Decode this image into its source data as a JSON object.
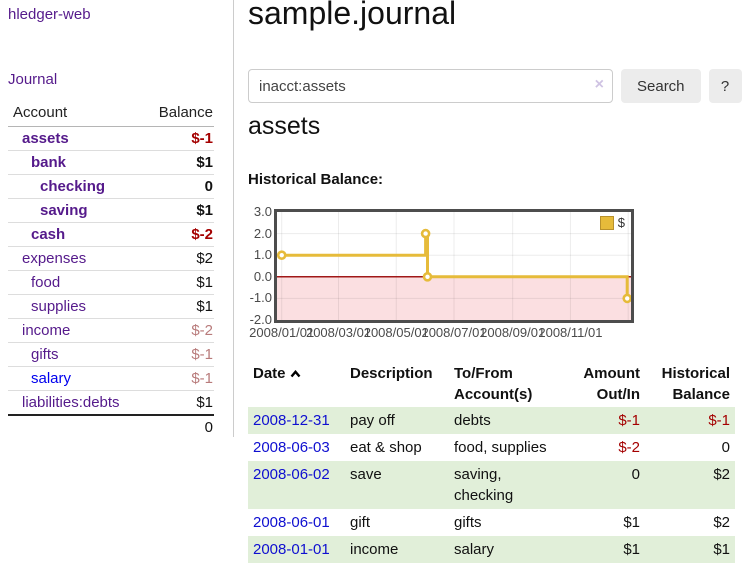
{
  "colors": {
    "accent_purple": "#551a8b",
    "unvisited_link_blue": "#0000ee",
    "date_link_blue": "#0f0fd0",
    "negative_strong": "#a40000",
    "negative_soft": "#b87b7b",
    "row_stripe_green": "#e1efd9",
    "chart_line_gold": "#e6bb3a"
  },
  "sidebar": {
    "brand": "hledger-web",
    "journal_link": "Journal",
    "columns": {
      "account": "Account",
      "balance": "Balance"
    },
    "accounts": [
      {
        "name": "assets",
        "balance": "$-1"
      },
      {
        "name": "bank",
        "balance": "$1"
      },
      {
        "name": "checking",
        "balance": "0"
      },
      {
        "name": "saving",
        "balance": "$1"
      },
      {
        "name": "cash",
        "balance": "$-2"
      },
      {
        "name": "expenses",
        "balance": "$2"
      },
      {
        "name": "food",
        "balance": "$1"
      },
      {
        "name": "supplies",
        "balance": "$1"
      },
      {
        "name": "income",
        "balance": "$-2"
      },
      {
        "name": "gifts",
        "balance": "$-1"
      },
      {
        "name": "salary",
        "balance": "$-1"
      },
      {
        "name": "liabilities:debts",
        "balance": "$1"
      }
    ],
    "total": "0"
  },
  "main": {
    "title": "sample.journal",
    "search": {
      "value": "inacct:assets",
      "clear_icon": "×",
      "search_button": "Search",
      "help_button": "?"
    },
    "account_heading": "assets"
  },
  "chart_data": {
    "type": "step-line",
    "title": "Historical Balance:",
    "legend_label": "$",
    "legend_position": "top-right",
    "ylim": [
      -2,
      3
    ],
    "xlim_days": [
      -5,
      369
    ],
    "grid": true,
    "series": [
      {
        "name": "$",
        "color": "#e6bb3a",
        "points": [
          {
            "date": "2008-01-01",
            "day": 0,
            "value": 1
          },
          {
            "date": "2008-06-01",
            "day": 152,
            "value": 2
          },
          {
            "date": "2008-06-03",
            "day": 154,
            "value": 0
          },
          {
            "date": "2008-12-31",
            "day": 365,
            "value": -1
          }
        ]
      }
    ],
    "x_ticks": [
      {
        "day": 0,
        "label": "2008/01/01"
      },
      {
        "day": 60,
        "label": "2008/03/01"
      },
      {
        "day": 121,
        "label": "2008/05/01"
      },
      {
        "day": 182,
        "label": "2008/07/01"
      },
      {
        "day": 244,
        "label": "2008/09/01"
      },
      {
        "day": 305,
        "label": "2008/11/01"
      }
    ],
    "extra_gridline_day": 366,
    "y_ticks": [
      {
        "value": 3,
        "label": "3.0"
      },
      {
        "value": 2,
        "label": "2.0"
      },
      {
        "value": 1,
        "label": "1.0"
      },
      {
        "value": 0,
        "label": "0.0"
      },
      {
        "value": -1,
        "label": "-1.0"
      },
      {
        "value": -2,
        "label": "-2.0"
      }
    ],
    "negative_region_fill": "#fbdfe1",
    "zero_line_color": "#a01818",
    "grid_color": "rgba(0,0,0,0.075)"
  },
  "register": {
    "columns": {
      "date": "Date",
      "description": "Description",
      "accounts": "To/From Account(s)",
      "amount": "Amount Out/In",
      "balance": "Historical Balance"
    },
    "sort_icon": "chevron-up",
    "rows": [
      {
        "date": "2008-12-31",
        "description": "pay off",
        "accounts": "debts",
        "amount": "$-1",
        "balance": "$-1"
      },
      {
        "date": "2008-06-03",
        "description": "eat & shop",
        "accounts": "food, supplies",
        "amount": "$-2",
        "balance": "0"
      },
      {
        "date": "2008-06-02",
        "description": "save",
        "accounts": "saving, checking",
        "amount": "0",
        "balance": "$2"
      },
      {
        "date": "2008-06-01",
        "description": "gift",
        "accounts": "gifts",
        "amount": "$1",
        "balance": "$2"
      },
      {
        "date": "2008-01-01",
        "description": "income",
        "accounts": "salary",
        "amount": "$1",
        "balance": "$1"
      }
    ]
  }
}
